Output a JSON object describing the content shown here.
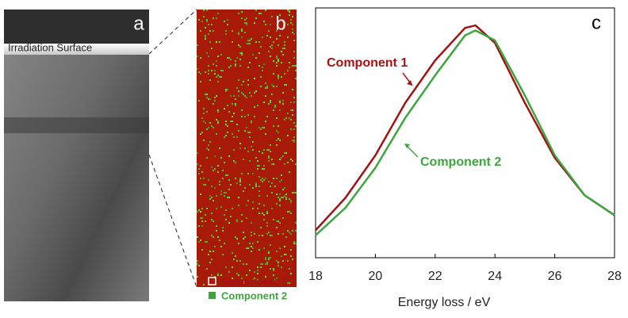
{
  "panels": {
    "a": {
      "label": "a",
      "annotation": "Irradiation Surface"
    },
    "b": {
      "label": "b"
    },
    "c": {
      "label": "c"
    }
  },
  "chart_data": {
    "type": "line",
    "xlabel": "Energy loss / eV",
    "x": [
      18,
      19,
      20,
      21,
      22,
      23,
      23.35,
      24,
      25,
      26,
      27,
      28
    ],
    "xlim": [
      18,
      28
    ],
    "xticks": [
      18,
      20,
      22,
      24,
      26,
      28
    ],
    "ylim": [
      0,
      1
    ],
    "series": [
      {
        "name": "Component 1",
        "color": "#a01414",
        "values": [
          0.11,
          0.24,
          0.41,
          0.62,
          0.79,
          0.92,
          0.93,
          0.86,
          0.62,
          0.4,
          0.25,
          0.17
        ]
      },
      {
        "name": "Component 2",
        "color": "#3ea53e",
        "values": [
          0.09,
          0.2,
          0.36,
          0.56,
          0.73,
          0.89,
          0.91,
          0.87,
          0.65,
          0.41,
          0.25,
          0.17
        ]
      }
    ]
  }
}
